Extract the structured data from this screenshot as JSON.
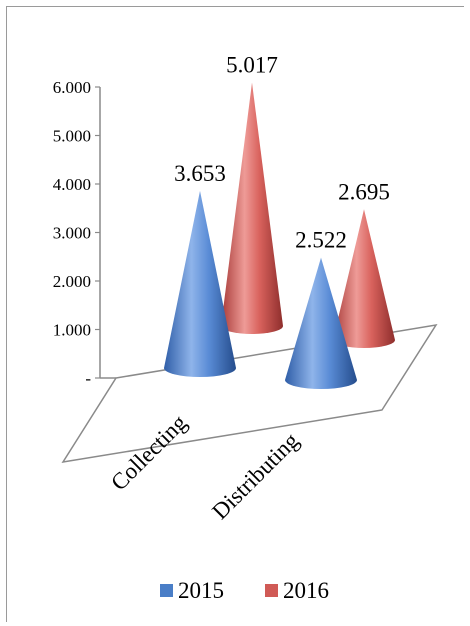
{
  "chart_data": {
    "type": "bar",
    "style": "3d-cone",
    "title": "",
    "xlabel": "",
    "ylabel": "",
    "categories": [
      "Collecting",
      "Distributing"
    ],
    "series": [
      {
        "name": "2015",
        "values": [
          3.653,
          2.522
        ],
        "labels": [
          "3.653",
          "2.522"
        ],
        "color": "#4a7ec7"
      },
      {
        "name": "2016",
        "values": [
          5.017,
          2.695
        ],
        "labels": [
          "5.017",
          "2.695"
        ],
        "color": "#d05a56"
      }
    ],
    "yticks": [
      {
        "value": 0,
        "label": "-"
      },
      {
        "value": 1,
        "label": "1.000"
      },
      {
        "value": 2,
        "label": "2.000"
      },
      {
        "value": 3,
        "label": "3.000"
      },
      {
        "value": 4,
        "label": "4.000"
      },
      {
        "value": 5,
        "label": "5.000"
      },
      {
        "value": 6,
        "label": "6.000"
      }
    ],
    "ylim": [
      0,
      6
    ],
    "grid": false,
    "legend": "bottom"
  }
}
